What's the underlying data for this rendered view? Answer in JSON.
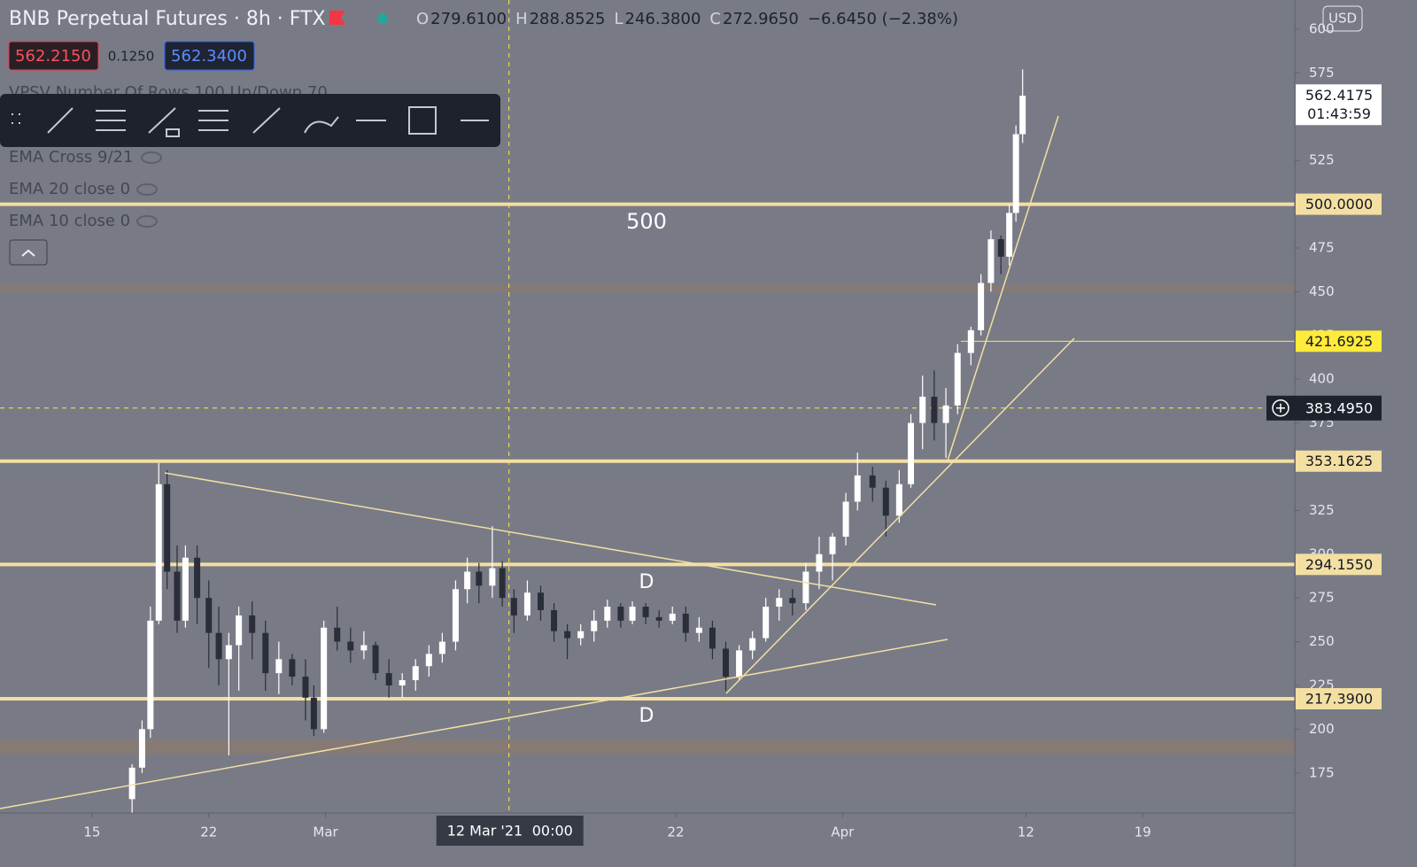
{
  "header": {
    "title": "BNB Perpetual Futures · 8h · FTX",
    "ohlc": [
      {
        "key": "O",
        "value": "279.6100"
      },
      {
        "key": "H",
        "value": "288.8525"
      },
      {
        "key": "L",
        "value": "246.3800"
      },
      {
        "key": "C",
        "value": "272.9650"
      }
    ],
    "change": "−6.6450 (−2.38%)",
    "bid": "562.2150",
    "spread": "0.1250",
    "ask": "562.3400"
  },
  "indicators": [
    "VPSV Number Of Rows 100 Up/Down 70",
    "EMA Cross 9/21",
    "EMA 20 close 0",
    "EMA 10 close 0"
  ],
  "currency": "USD",
  "chart_data": {
    "type": "candlestick",
    "x": [
      48.4,
      49.0,
      49.5,
      50.0,
      50.5,
      51.1,
      51.6,
      52.3,
      53.0,
      53.6,
      54.2,
      54.8,
      55.6,
      56.4,
      57.2,
      58.0,
      58.8,
      59.3,
      59.9,
      60.7,
      61.5,
      62.3,
      63.0,
      63.8,
      64.6,
      65.4,
      66.2,
      67.0,
      67.8,
      68.5,
      69.2,
      70.0,
      70.6,
      71.3,
      72.1,
      72.9,
      73.7,
      74.5,
      75.3,
      76.1,
      76.9,
      77.7,
      78.4,
      79.2,
      80.0,
      80.8,
      81.6,
      82.4,
      83.2,
      84.0,
      84.8,
      85.6,
      86.4,
      87.2,
      88.0,
      88.8,
      89.6,
      90.4,
      91.2,
      91.9,
      92.8,
      93.6,
      94.4,
      95.1,
      95.8,
      96.5,
      97.2,
      97.9,
      98.7,
      99.3,
      99.9,
      100.5,
      101.0,
      101.4,
      101.8
    ],
    "open": [
      160,
      178,
      200,
      262,
      340,
      290,
      262,
      298,
      275,
      255,
      240,
      248,
      265,
      255,
      232,
      240,
      230,
      218,
      200,
      258,
      250,
      245,
      248,
      232,
      225,
      228,
      236,
      243,
      250,
      280,
      290,
      282,
      292,
      275,
      265,
      278,
      268,
      256,
      252,
      256,
      262,
      270,
      262,
      270,
      264,
      262,
      266,
      255,
      258,
      246,
      230,
      245,
      252,
      270,
      275,
      272,
      290,
      300,
      310,
      330,
      345,
      338,
      322,
      340,
      375,
      390,
      375,
      385,
      415,
      428,
      455,
      480,
      470,
      495,
      540
    ],
    "high": [
      180,
      205,
      270,
      352,
      348,
      305,
      305,
      305,
      285,
      270,
      255,
      270,
      273,
      262,
      250,
      243,
      240,
      225,
      262,
      270,
      258,
      256,
      250,
      240,
      232,
      240,
      248,
      255,
      285,
      298,
      295,
      316,
      296,
      280,
      285,
      282,
      272,
      260,
      260,
      268,
      274,
      272,
      273,
      272,
      268,
      270,
      270,
      264,
      262,
      250,
      248,
      256,
      275,
      280,
      280,
      295,
      310,
      312,
      335,
      358,
      350,
      342,
      348,
      380,
      402,
      405,
      395,
      420,
      430,
      460,
      485,
      482,
      500,
      545,
      577
    ],
    "low": [
      152,
      175,
      195,
      260,
      280,
      255,
      258,
      260,
      235,
      225,
      185,
      222,
      240,
      222,
      220,
      225,
      205,
      196,
      198,
      245,
      238,
      240,
      228,
      218,
      218,
      222,
      230,
      238,
      245,
      272,
      272,
      275,
      270,
      255,
      262,
      262,
      250,
      240,
      248,
      250,
      258,
      258,
      260,
      260,
      258,
      260,
      250,
      250,
      240,
      222,
      228,
      240,
      250,
      262,
      265,
      268,
      280,
      285,
      305,
      325,
      330,
      310,
      318,
      338,
      360,
      365,
      355,
      380,
      408,
      425,
      450,
      460,
      465,
      490,
      535
    ],
    "close": [
      178,
      200,
      262,
      340,
      290,
      262,
      298,
      275,
      255,
      240,
      248,
      265,
      255,
      232,
      240,
      230,
      218,
      200,
      258,
      250,
      245,
      248,
      232,
      225,
      228,
      236,
      243,
      250,
      280,
      290,
      282,
      292,
      275,
      265,
      278,
      268,
      256,
      252,
      256,
      262,
      270,
      262,
      270,
      264,
      262,
      266,
      255,
      258,
      246,
      230,
      245,
      252,
      270,
      275,
      272,
      290,
      300,
      310,
      330,
      345,
      338,
      322,
      340,
      375,
      390,
      375,
      385,
      415,
      428,
      455,
      480,
      470,
      495,
      540,
      562
    ],
    "up_color": "#ffffff",
    "down_color": "#2a2e39",
    "xlim": [
      40.48,
      118.12
    ],
    "ylim": [
      152.1,
      616.7
    ],
    "xticks": [
      {
        "value": 46,
        "label": "15"
      },
      {
        "value": 53,
        "label": "22"
      },
      {
        "value": 60,
        "label": "Mar"
      },
      {
        "value": 81,
        "label": "22"
      },
      {
        "value": 91,
        "label": "Apr"
      },
      {
        "value": 102,
        "label": "12"
      },
      {
        "value": 109,
        "label": "19"
      }
    ],
    "yticks": [
      175,
      200,
      225,
      250,
      275,
      300,
      325,
      350,
      375,
      400,
      425,
      450,
      475,
      500,
      525,
      550,
      575,
      600
    ],
    "levels": [
      {
        "value": 500,
        "label": "500.0000",
        "color": "#f3dfa2",
        "width": 4
      },
      {
        "value": 421.6925,
        "label": "421.6925",
        "color": "#ffeb3b",
        "width": 1
      },
      {
        "value": 353.1625,
        "label": "353.1625",
        "color": "#f3dfa2",
        "width": 4
      },
      {
        "value": 294.155,
        "label": "294.1550",
        "color": "#f3dfa2",
        "width": 4
      },
      {
        "value": 217.39,
        "label": "217.3900",
        "color": "#f3dfa2",
        "width": 4
      }
    ],
    "zones": [
      {
        "from": 450,
        "to": 454,
        "color": "#8c7b6e"
      },
      {
        "from": 185.6,
        "to": 194.2,
        "color": "#8c7b6e"
      }
    ],
    "last_price": {
      "value": 562.4175,
      "label": "562.4175",
      "countdown": "01:43:59"
    },
    "crosshair": {
      "x": 71,
      "x_label": "12 Mar '21",
      "time": "00:00",
      "price": {
        "value": 383.495,
        "label": "383.4950"
      }
    },
    "annotations": [
      "500",
      "D",
      "D"
    ]
  }
}
